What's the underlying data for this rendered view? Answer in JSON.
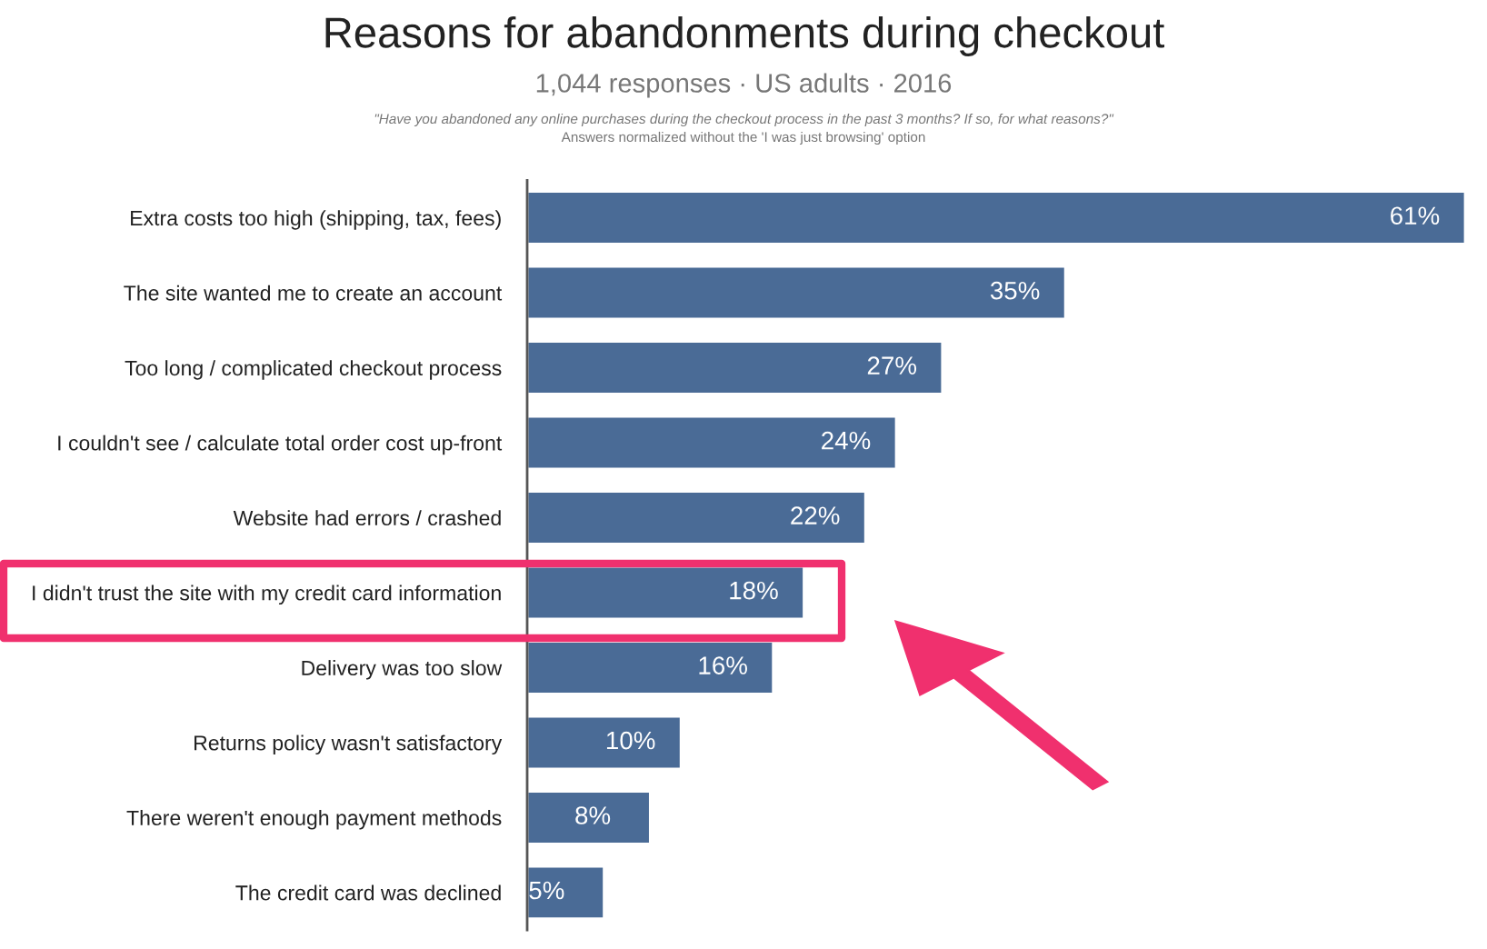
{
  "chart_data": {
    "type": "bar",
    "orientation": "horizontal",
    "title": "Reasons for abandonments during checkout",
    "subtitle": "1,044 responses · US adults · 2016",
    "annotations": [
      "\"Have you abandoned any online purchases during the checkout process in the past 3 months? If so, for what reasons?\"",
      "Answers normalized without the 'I was just browsing' option"
    ],
    "categories": [
      "Extra costs too high (shipping, tax, fees)",
      "The site wanted me to create an account",
      "Too long / complicated checkout process",
      "I couldn't see / calculate total order cost up-front",
      "Website had errors / crashed",
      "I didn't trust the site with my credit card information",
      "Delivery was too slow",
      "Returns policy wasn't satisfactory",
      "There weren't enough payment methods",
      "The credit card was declined"
    ],
    "values": [
      61,
      35,
      27,
      24,
      22,
      18,
      16,
      10,
      8,
      5
    ],
    "value_labels": [
      "61%",
      "35%",
      "27%",
      "24%",
      "22%",
      "18%",
      "16%",
      "10%",
      "8%",
      "5%"
    ],
    "color": "#4a6b96",
    "grid": false,
    "legend": false
  }
}
